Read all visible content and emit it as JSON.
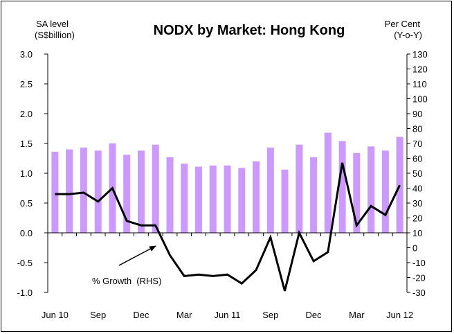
{
  "chart_data": {
    "type": "bar+line",
    "title": "NODX by Market: Hong Kong",
    "left_axis_label": [
      "SA level",
      "(S$billion)"
    ],
    "right_axis_label": [
      "Per Cent",
      "(Y-o-Y)"
    ],
    "left_axis": {
      "min": -1.0,
      "max": 3.0,
      "ticks": [
        "3.0",
        "2.5",
        "2.0",
        "1.5",
        "1.0",
        "0.5",
        "0.0",
        "-0.5",
        "-1.0"
      ]
    },
    "right_axis": {
      "min": -30,
      "max": 130,
      "ticks": [
        "130",
        "120",
        "110",
        "100",
        "90",
        "80",
        "70",
        "60",
        "50",
        "40",
        "30",
        "20",
        "10",
        "0",
        "-10",
        "-20",
        "-30"
      ]
    },
    "x_tick_labels": [
      "Jun 10",
      "Sep",
      "Dec",
      "Mar",
      "Jun 11",
      "Sep",
      "Dec",
      "Mar",
      "Jun 12"
    ],
    "x_tick_index": [
      0,
      3,
      6,
      9,
      12,
      15,
      18,
      21,
      24
    ],
    "months": [
      "Jun 10",
      "Jul 10",
      "Aug 10",
      "Sep 10",
      "Oct 10",
      "Nov 10",
      "Dec 10",
      "Jan 11",
      "Feb 11",
      "Mar 11",
      "Apr 11",
      "May 11",
      "Jun 11",
      "Jul 11",
      "Aug 11",
      "Sep 11",
      "Oct 11",
      "Nov 11",
      "Dec 11",
      "Jan 12",
      "Feb 12",
      "Mar 12",
      "Apr 12",
      "May 12",
      "Jun 12"
    ],
    "series": [
      {
        "axis": "left",
        "render": "bar",
        "color": "#cc99ff",
        "values": [
          1.36,
          1.4,
          1.43,
          1.38,
          1.5,
          1.31,
          1.38,
          1.48,
          1.27,
          1.16,
          1.11,
          1.13,
          1.13,
          1.09,
          1.2,
          1.43,
          1.06,
          1.48,
          1.27,
          1.68,
          1.54,
          1.34,
          1.45,
          1.38,
          1.61
        ]
      },
      {
        "name": "% Growth  (RHS)",
        "axis": "right",
        "render": "line",
        "color": "#000000",
        "values": [
          36,
          36,
          37,
          31,
          40,
          18,
          15,
          15,
          -5,
          -19,
          -18,
          -19,
          -18,
          -24,
          -15,
          7,
          -29,
          10,
          -9,
          -3,
          57,
          15,
          28,
          22,
          42
        ]
      }
    ],
    "annotation": {
      "text": "% Growth  (RHS)",
      "arrow_to_series_index": 8
    }
  }
}
